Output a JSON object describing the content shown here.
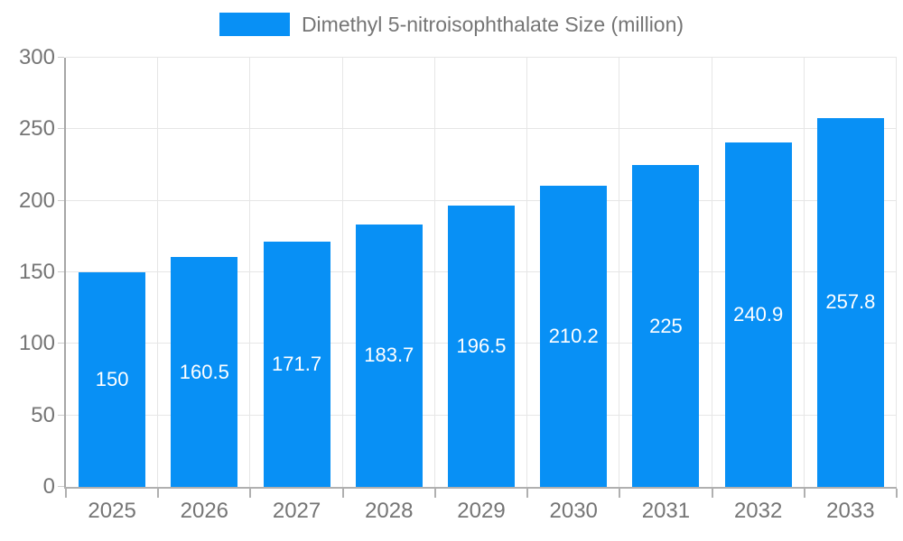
{
  "legend": {
    "label": "Dimethyl 5-nitroisophthalate Size (million)",
    "swatch_color": "#0890f5"
  },
  "chart_data": {
    "type": "bar",
    "title": "Dimethyl 5-nitroisophthalate Size (million)",
    "categories": [
      "2025",
      "2026",
      "2027",
      "2028",
      "2029",
      "2030",
      "2031",
      "2032",
      "2033"
    ],
    "values": [
      150,
      160.5,
      171.7,
      183.7,
      196.5,
      210.2,
      225,
      240.9,
      257.8
    ],
    "value_labels": [
      "150",
      "160.5",
      "171.7",
      "183.7",
      "196.5",
      "210.2",
      "225",
      "240.9",
      "257.8"
    ],
    "xlabel": "",
    "ylabel": "",
    "ylim": [
      0,
      300
    ],
    "yticks": [
      0,
      50,
      100,
      150,
      200,
      250,
      300
    ],
    "grid": true,
    "legend_position": "top-center",
    "bar_color": "#0890f5",
    "value_label_color": "#ffffff",
    "grid_color": "#e6e6e6",
    "axis_color": "#a6a6a6",
    "tick_label_color": "#757575"
  }
}
